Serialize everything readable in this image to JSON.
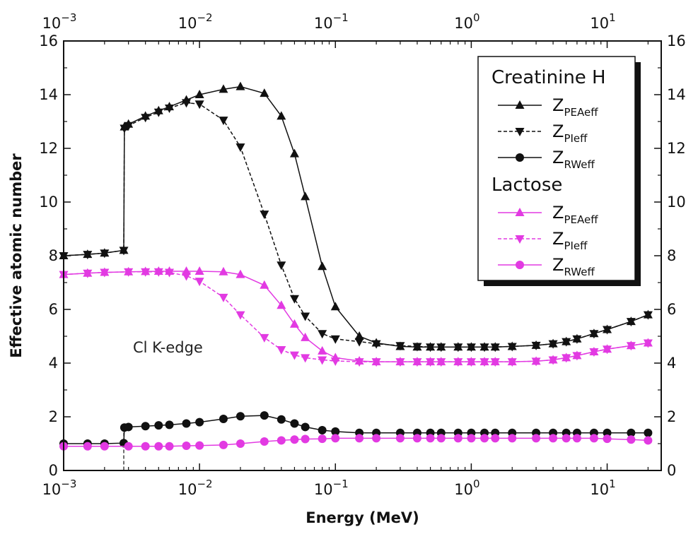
{
  "chart_data": {
    "type": "line",
    "xscale": "log",
    "xlim": [
      0.001,
      25
    ],
    "ylim": [
      0,
      16
    ],
    "xlabel": "Energy (MeV)",
    "ylabel": "Effective atomic number",
    "y_ticks": [
      "0",
      "2",
      "4",
      "6",
      "8",
      "10",
      "12",
      "14",
      "16"
    ],
    "x_ticks": [
      {
        "value": 0.001,
        "base": "10",
        "exp": "−3"
      },
      {
        "value": 0.01,
        "base": "10",
        "exp": "−2"
      },
      {
        "value": 0.1,
        "base": "10",
        "exp": "−1"
      },
      {
        "value": 1,
        "base": "10",
        "exp": "0"
      },
      {
        "value": 10,
        "base": "10",
        "exp": "1"
      }
    ],
    "annotation": {
      "text": "Cl K-edge",
      "x": 0.00277
    },
    "legend": {
      "placement": "top-right",
      "groups": [
        {
          "title": "Creatinine H",
          "entries": [
            {
              "base": "Z",
              "sub": "PEAeff",
              "series": 0
            },
            {
              "base": "Z",
              "sub": "PIeff",
              "series": 1
            },
            {
              "base": "Z",
              "sub": "RWeff",
              "series": 2
            }
          ]
        },
        {
          "title": "Lactose",
          "entries": [
            {
              "base": "Z",
              "sub": "PEAeff",
              "series": 3
            },
            {
              "base": "Z",
              "sub": "PIeff",
              "series": 4
            },
            {
              "base": "Z",
              "sub": "RWeff",
              "series": 5
            }
          ]
        }
      ]
    },
    "series": [
      {
        "name": "Creatinine H Z_PEAeff",
        "color": "#111111",
        "marker": "triangle-up",
        "dash": false,
        "x": [
          0.001,
          0.0015,
          0.002,
          0.00277,
          0.0028,
          0.003,
          0.004,
          0.005,
          0.006,
          0.008,
          0.01,
          0.015,
          0.02,
          0.03,
          0.04,
          0.05,
          0.06,
          0.08,
          0.1,
          0.15,
          0.2,
          0.3,
          0.4,
          0.5,
          0.6,
          0.8,
          1,
          1.25,
          1.5,
          2,
          3,
          4,
          5,
          6,
          8,
          10,
          15,
          20
        ],
        "y": [
          8.0,
          8.05,
          8.1,
          8.2,
          12.8,
          12.9,
          13.2,
          13.4,
          13.55,
          13.8,
          14.0,
          14.2,
          14.3,
          14.05,
          13.2,
          11.8,
          10.2,
          7.6,
          6.1,
          5.0,
          4.75,
          4.62,
          4.6,
          4.6,
          4.6,
          4.6,
          4.6,
          4.6,
          4.6,
          4.62,
          4.66,
          4.72,
          4.8,
          4.9,
          5.1,
          5.25,
          5.55,
          5.8
        ]
      },
      {
        "name": "Creatinine H Z_PIeff",
        "color": "#111111",
        "marker": "triangle-down",
        "dash": true,
        "x": [
          0.001,
          0.0015,
          0.002,
          0.00277,
          0.0028,
          0.003,
          0.004,
          0.005,
          0.006,
          0.008,
          0.01,
          0.015,
          0.02,
          0.03,
          0.04,
          0.05,
          0.06,
          0.08,
          0.1,
          0.15,
          0.2,
          0.3,
          0.4,
          0.5,
          0.6,
          0.8,
          1,
          1.25,
          1.5,
          2,
          3,
          4,
          5,
          6,
          8,
          10,
          15,
          20
        ],
        "y": [
          8.0,
          8.05,
          8.1,
          8.2,
          12.75,
          12.85,
          13.15,
          13.35,
          13.5,
          13.7,
          13.65,
          13.05,
          12.05,
          9.55,
          7.65,
          6.4,
          5.75,
          5.1,
          4.9,
          4.8,
          4.72,
          4.65,
          4.62,
          4.6,
          4.6,
          4.6,
          4.6,
          4.6,
          4.6,
          4.62,
          4.66,
          4.72,
          4.8,
          4.9,
          5.1,
          5.25,
          5.55,
          5.8
        ]
      },
      {
        "name": "Creatinine H Z_RWeff",
        "color": "#111111",
        "marker": "circle",
        "dash": false,
        "x": [
          0.001,
          0.0015,
          0.002,
          0.00277,
          0.0028,
          0.003,
          0.004,
          0.005,
          0.006,
          0.008,
          0.01,
          0.015,
          0.02,
          0.03,
          0.04,
          0.05,
          0.06,
          0.08,
          0.1,
          0.15,
          0.2,
          0.3,
          0.4,
          0.5,
          0.6,
          0.8,
          1,
          1.25,
          1.5,
          2,
          3,
          4,
          5,
          6,
          8,
          10,
          15,
          20
        ],
        "y": [
          1.0,
          1.0,
          1.0,
          1.02,
          1.6,
          1.62,
          1.65,
          1.68,
          1.7,
          1.75,
          1.8,
          1.92,
          2.02,
          2.05,
          1.9,
          1.75,
          1.62,
          1.5,
          1.45,
          1.4,
          1.4,
          1.4,
          1.4,
          1.4,
          1.4,
          1.4,
          1.4,
          1.4,
          1.4,
          1.4,
          1.4,
          1.4,
          1.4,
          1.4,
          1.4,
          1.4,
          1.4,
          1.4
        ]
      },
      {
        "name": "Lactose Z_PEAeff",
        "color": "#e23ae2",
        "marker": "triangle-up",
        "dash": false,
        "x": [
          0.001,
          0.0015,
          0.002,
          0.003,
          0.004,
          0.005,
          0.006,
          0.008,
          0.01,
          0.015,
          0.02,
          0.03,
          0.04,
          0.05,
          0.06,
          0.08,
          0.1,
          0.15,
          0.2,
          0.3,
          0.4,
          0.5,
          0.6,
          0.8,
          1,
          1.25,
          1.5,
          2,
          3,
          4,
          5,
          6,
          8,
          10,
          15,
          20
        ],
        "y": [
          7.3,
          7.35,
          7.38,
          7.4,
          7.41,
          7.42,
          7.42,
          7.42,
          7.42,
          7.4,
          7.3,
          6.9,
          6.15,
          5.45,
          4.95,
          4.45,
          4.2,
          4.08,
          4.05,
          4.05,
          4.05,
          4.05,
          4.05,
          4.05,
          4.05,
          4.05,
          4.05,
          4.05,
          4.07,
          4.12,
          4.2,
          4.28,
          4.42,
          4.52,
          4.65,
          4.75
        ]
      },
      {
        "name": "Lactose Z_PIeff",
        "color": "#e23ae2",
        "marker": "triangle-down",
        "dash": true,
        "x": [
          0.001,
          0.0015,
          0.002,
          0.003,
          0.004,
          0.005,
          0.006,
          0.008,
          0.01,
          0.015,
          0.02,
          0.03,
          0.04,
          0.05,
          0.06,
          0.08,
          0.1,
          0.15,
          0.2,
          0.3,
          0.4,
          0.5,
          0.6,
          0.8,
          1,
          1.25,
          1.5,
          2,
          3,
          4,
          5,
          6,
          8,
          10,
          15,
          20
        ],
        "y": [
          7.3,
          7.35,
          7.38,
          7.4,
          7.4,
          7.4,
          7.38,
          7.25,
          7.05,
          6.45,
          5.8,
          4.95,
          4.5,
          4.3,
          4.2,
          4.12,
          4.08,
          4.05,
          4.05,
          4.05,
          4.05,
          4.05,
          4.05,
          4.05,
          4.05,
          4.05,
          4.05,
          4.05,
          4.07,
          4.12,
          4.2,
          4.28,
          4.42,
          4.52,
          4.65,
          4.75
        ]
      },
      {
        "name": "Lactose Z_RWeff",
        "color": "#e23ae2",
        "marker": "circle",
        "dash": false,
        "x": [
          0.001,
          0.0015,
          0.002,
          0.003,
          0.004,
          0.005,
          0.006,
          0.008,
          0.01,
          0.015,
          0.02,
          0.03,
          0.04,
          0.05,
          0.06,
          0.08,
          0.1,
          0.15,
          0.2,
          0.3,
          0.4,
          0.5,
          0.6,
          0.8,
          1,
          1.25,
          1.5,
          2,
          3,
          4,
          5,
          6,
          8,
          10,
          15,
          20
        ],
        "y": [
          0.9,
          0.9,
          0.9,
          0.9,
          0.9,
          0.9,
          0.9,
          0.92,
          0.93,
          0.95,
          1.0,
          1.08,
          1.12,
          1.15,
          1.17,
          1.18,
          1.2,
          1.2,
          1.2,
          1.2,
          1.2,
          1.2,
          1.2,
          1.2,
          1.2,
          1.2,
          1.2,
          1.2,
          1.2,
          1.2,
          1.2,
          1.2,
          1.2,
          1.18,
          1.15,
          1.12
        ]
      }
    ]
  }
}
